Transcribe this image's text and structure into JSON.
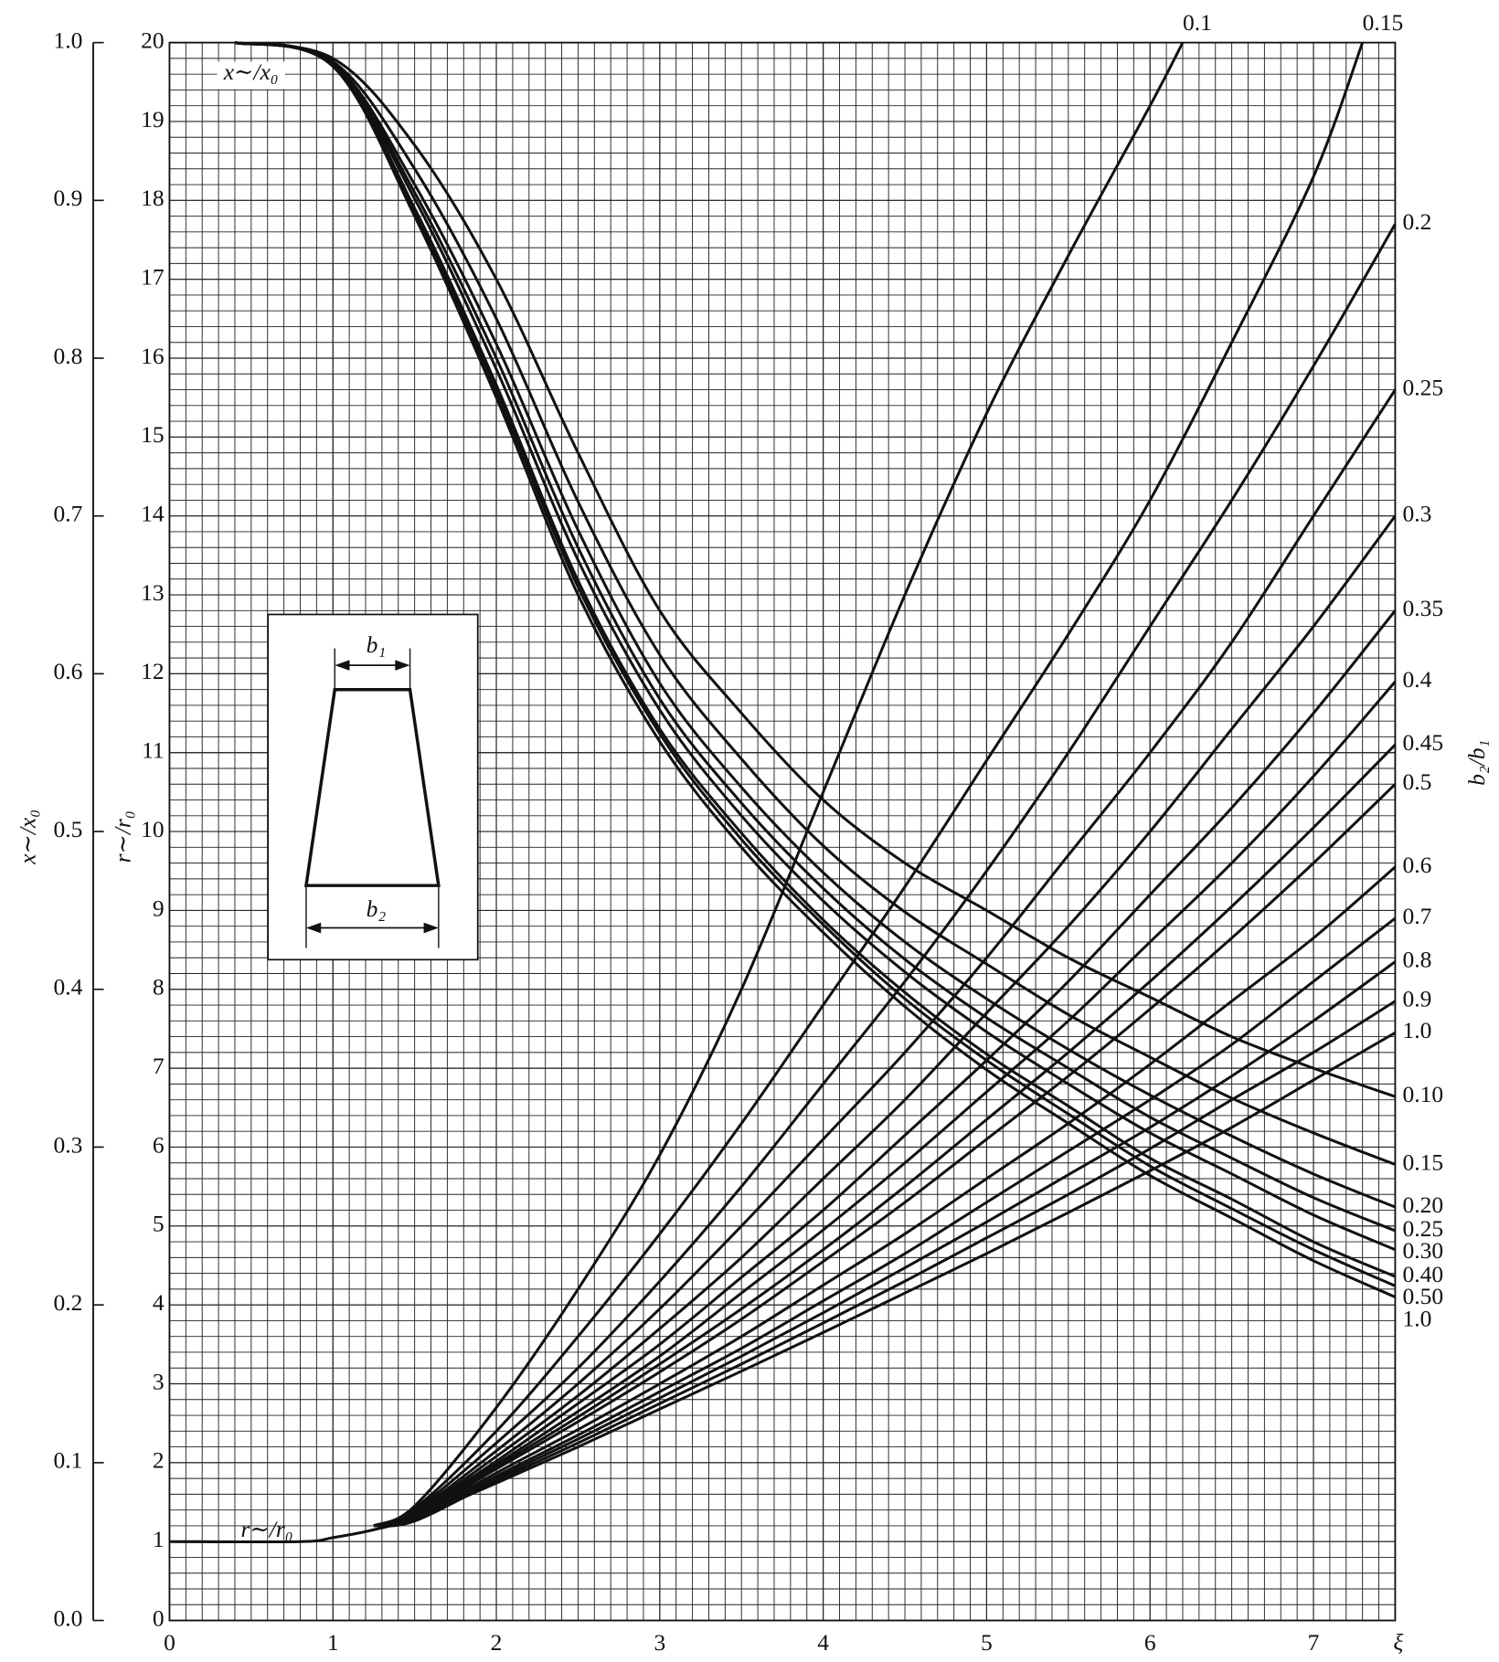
{
  "chart_data": {
    "type": "line",
    "xlabel": "ξ",
    "ylabel": "x∼/x₀",
    "y2label": "r∼/r₀",
    "legend_title": "b₂/b₁",
    "annotations": [
      "x∼/x₀",
      "r∼/r₀"
    ],
    "color": "#111111",
    "grid": true,
    "xlim": [
      0,
      7.5
    ],
    "xticks": [
      0,
      1,
      2,
      3,
      4,
      5,
      6,
      7
    ],
    "ylim": [
      0,
      1
    ],
    "yticks": [
      {
        "value": 0,
        "label": "0.0"
      },
      0.1,
      0.2,
      0.3,
      0.4,
      0.5,
      0.6,
      0.7,
      0.8,
      0.9,
      {
        "value": 1,
        "label": "1.0"
      }
    ],
    "y2lim": [
      0,
      20
    ],
    "y2ticks": [
      0,
      1,
      2,
      3,
      4,
      5,
      6,
      7,
      8,
      9,
      10,
      11,
      12,
      13,
      14,
      15,
      16,
      17,
      18,
      19,
      20
    ],
    "series": [
      {
        "name": "0.10",
        "x": [
          0.4,
          1,
          1.5,
          2,
          2.5,
          3,
          3.5,
          4,
          4.5,
          5,
          5.5,
          6,
          6.5,
          7,
          7.5
        ],
        "values": [
          1,
          0.99,
          0.935,
          0.85,
          0.74,
          0.64,
          0.575,
          0.52,
          0.48,
          0.45,
          0.42,
          0.395,
          0.37,
          0.35,
          0.332
        ]
      },
      {
        "name": "0.15",
        "x": [
          0.4,
          1,
          1.5,
          2,
          2.5,
          3,
          3.5,
          4,
          4.5,
          5,
          5.5,
          6,
          6.5,
          7,
          7.5
        ],
        "values": [
          1,
          0.988,
          0.92,
          0.825,
          0.709,
          0.612,
          0.546,
          0.491,
          0.449,
          0.416,
          0.384,
          0.357,
          0.331,
          0.309,
          0.289
        ]
      },
      {
        "name": "0.20",
        "x": [
          0.4,
          1,
          1.5,
          2,
          2.5,
          3,
          3.5,
          4,
          4.5,
          5,
          5.5,
          6,
          6.5,
          7,
          7.5
        ],
        "values": [
          1,
          0.987,
          0.91,
          0.809,
          0.691,
          0.594,
          0.528,
          0.474,
          0.43,
          0.394,
          0.362,
          0.333,
          0.307,
          0.283,
          0.262
        ]
      },
      {
        "name": "0.25",
        "x": [
          0.4,
          1,
          1.5,
          2,
          2.5,
          3,
          3.5,
          4,
          4.5,
          5,
          5.5,
          6,
          6.5,
          7,
          7.5
        ],
        "values": [
          1,
          0.987,
          0.905,
          0.8,
          0.68,
          0.584,
          0.518,
          0.464,
          0.419,
          0.382,
          0.35,
          0.319,
          0.293,
          0.268,
          0.247
        ]
      },
      {
        "name": "0.30",
        "x": [
          0.4,
          1,
          1.5,
          2,
          2.5,
          3,
          3.5,
          4,
          4.5,
          5,
          5.5,
          6,
          6.5,
          7,
          7.5
        ],
        "values": [
          1,
          0.986,
          0.901,
          0.793,
          0.672,
          0.577,
          0.51,
          0.456,
          0.411,
          0.373,
          0.34,
          0.309,
          0.283,
          0.257,
          0.235
        ]
      },
      {
        "name": "0.40",
        "x": [
          0.4,
          1,
          1.5,
          2,
          2.5,
          3,
          3.5,
          4,
          4.5,
          5,
          5.5,
          6,
          6.5,
          7,
          7.5
        ],
        "values": [
          1,
          0.986,
          0.895,
          0.783,
          0.659,
          0.565,
          0.499,
          0.444,
          0.398,
          0.359,
          0.326,
          0.293,
          0.267,
          0.24,
          0.218
        ]
      },
      {
        "name": "0.50",
        "x": [
          0.4,
          1,
          1.5,
          2,
          2.5,
          3,
          3.5,
          4,
          4.5,
          5,
          5.5,
          6,
          6.5,
          7,
          7.5
        ],
        "values": [
          1,
          0.985,
          0.892,
          0.779,
          0.655,
          0.562,
          0.495,
          0.441,
          0.394,
          0.355,
          0.321,
          0.288,
          0.261,
          0.235,
          0.212
        ]
      },
      {
        "name": "1.0",
        "x": [
          0.4,
          1,
          1.5,
          2,
          2.5,
          3,
          3.5,
          4,
          4.5,
          5,
          5.5,
          6,
          6.5,
          7,
          7.5
        ],
        "values": [
          1,
          0.985,
          0.89,
          0.775,
          0.65,
          0.557,
          0.49,
          0.436,
          0.389,
          0.349,
          0.315,
          0.282,
          0.255,
          0.228,
          0.205
        ]
      },
      {
        "name": "0.1",
        "axis": "y2",
        "x": [
          1.25,
          1.5,
          2,
          2.5,
          3,
          3.5,
          4,
          4.5,
          5,
          5.5,
          6,
          6.2
        ],
        "values": [
          1.2,
          1.45,
          2.7,
          4.2,
          5.9,
          8.0,
          10.5,
          13.0,
          15.3,
          17.3,
          19.2,
          20
        ]
      },
      {
        "name": "0.15",
        "axis": "y2",
        "x": [
          1.25,
          1.5,
          2,
          2.5,
          3,
          3.5,
          4,
          4.5,
          5,
          5.5,
          6,
          6.5,
          7,
          7.3
        ],
        "values": [
          1.2,
          1.42,
          2.4,
          3.6,
          4.9,
          6.3,
          7.8,
          9.3,
          10.9,
          12.5,
          14.2,
          16.2,
          18.3,
          20
        ]
      },
      {
        "name": "0.2",
        "axis": "y2",
        "x": [
          1.25,
          1.5,
          2,
          2.5,
          3,
          3.5,
          4,
          4.5,
          5,
          5.5,
          6,
          6.5,
          7,
          7.5
        ],
        "values": [
          1.2,
          1.4,
          2.25,
          3.2,
          4.3,
          5.5,
          6.8,
          8.1,
          9.5,
          11.0,
          12.6,
          14.2,
          15.9,
          17.7
        ]
      },
      {
        "name": "0.25",
        "axis": "y2",
        "x": [
          1.25,
          1.5,
          2,
          2.5,
          3,
          3.5,
          4,
          4.5,
          5,
          5.5,
          6,
          6.5,
          7,
          7.5
        ],
        "values": [
          1.2,
          1.38,
          2.15,
          3.0,
          3.95,
          5.0,
          6.1,
          7.2,
          8.4,
          9.7,
          11.0,
          12.4,
          14.0,
          15.6
        ]
      },
      {
        "name": "0.3",
        "axis": "y2",
        "x": [
          1.25,
          1.5,
          2,
          2.5,
          3,
          3.5,
          4,
          4.5,
          5,
          5.5,
          6,
          6.5,
          7,
          7.5
        ],
        "values": [
          1.2,
          1.36,
          2.08,
          2.85,
          3.7,
          4.6,
          5.6,
          6.6,
          7.7,
          8.8,
          10.0,
          11.3,
          12.6,
          14.0
        ]
      },
      {
        "name": "0.35",
        "axis": "y2",
        "x": [
          1.25,
          1.5,
          2,
          2.5,
          3,
          3.5,
          4,
          4.5,
          5,
          5.5,
          6,
          6.5,
          7,
          7.5
        ],
        "values": [
          1.2,
          1.35,
          2.02,
          2.75,
          3.5,
          4.35,
          5.2,
          6.15,
          7.1,
          8.1,
          9.2,
          10.3,
          11.5,
          12.8
        ]
      },
      {
        "name": "0.4",
        "axis": "y2",
        "x": [
          1.25,
          1.5,
          2,
          2.5,
          3,
          3.5,
          4,
          4.5,
          5,
          5.5,
          6,
          6.5,
          7,
          7.5
        ],
        "values": [
          1.2,
          1.34,
          1.98,
          2.65,
          3.35,
          4.15,
          4.95,
          5.8,
          6.7,
          7.6,
          8.6,
          9.6,
          10.7,
          11.9
        ]
      },
      {
        "name": "0.45",
        "axis": "y2",
        "x": [
          1.25,
          1.5,
          2,
          2.5,
          3,
          3.5,
          4,
          4.5,
          5,
          5.5,
          6,
          6.5,
          7,
          7.5
        ],
        "values": [
          1.2,
          1.33,
          1.95,
          2.58,
          3.25,
          3.95,
          4.7,
          5.5,
          6.35,
          7.2,
          8.1,
          9.05,
          10.05,
          11.1
        ]
      },
      {
        "name": "0.5",
        "axis": "y2",
        "x": [
          1.25,
          1.5,
          2,
          2.5,
          3,
          3.5,
          4,
          4.5,
          5,
          5.5,
          6,
          6.5,
          7,
          7.5
        ],
        "values": [
          1.2,
          1.32,
          1.92,
          2.52,
          3.15,
          3.82,
          4.55,
          5.3,
          6.1,
          6.9,
          7.75,
          8.65,
          9.6,
          10.6
        ]
      },
      {
        "name": "0.6",
        "axis": "y2",
        "x": [
          1.25,
          1.5,
          2,
          2.5,
          3,
          3.5,
          4,
          4.5,
          5,
          5.5,
          6,
          6.5,
          7,
          7.5
        ],
        "values": [
          1.2,
          1.3,
          1.87,
          2.42,
          3.0,
          3.6,
          4.25,
          4.9,
          5.6,
          6.3,
          7.05,
          7.85,
          8.65,
          9.55
        ]
      },
      {
        "name": "0.7",
        "axis": "y2",
        "x": [
          1.25,
          1.5,
          2,
          2.5,
          3,
          3.5,
          4,
          4.5,
          5,
          5.5,
          6,
          6.5,
          7,
          7.5
        ],
        "values": [
          1.2,
          1.28,
          1.83,
          2.35,
          2.9,
          3.45,
          4.05,
          4.65,
          5.3,
          5.95,
          6.6,
          7.3,
          8.1,
          8.9
        ]
      },
      {
        "name": "0.8",
        "axis": "y2",
        "x": [
          1.25,
          1.5,
          2,
          2.5,
          3,
          3.5,
          4,
          4.5,
          5,
          5.5,
          6,
          6.5,
          7,
          7.5
        ],
        "values": [
          1.2,
          1.27,
          1.8,
          2.3,
          2.82,
          3.35,
          3.9,
          4.47,
          5.05,
          5.65,
          6.25,
          6.9,
          7.6,
          8.35
        ]
      },
      {
        "name": "0.9",
        "axis": "y2",
        "x": [
          1.25,
          1.5,
          2,
          2.5,
          3,
          3.5,
          4,
          4.5,
          5,
          5.5,
          6,
          6.5,
          7,
          7.5
        ],
        "values": [
          1.2,
          1.26,
          1.77,
          2.25,
          2.75,
          3.25,
          3.77,
          4.3,
          4.85,
          5.4,
          5.98,
          6.6,
          7.2,
          7.85
        ]
      },
      {
        "name": "1.0",
        "axis": "y2",
        "x": [
          0,
          0.8,
          1,
          1.25,
          1.5,
          2,
          2.5,
          3,
          3.5,
          4,
          4.5,
          5,
          5.5,
          6,
          6.5,
          7,
          7.5
        ],
        "values": [
          1,
          1,
          1.05,
          1.15,
          1.3,
          1.74,
          2.2,
          2.68,
          3.16,
          3.65,
          4.15,
          4.65,
          5.17,
          5.7,
          6.25,
          6.85,
          7.45
        ]
      }
    ]
  },
  "inset": {
    "top_label": "b₁",
    "bottom_label": "b₂"
  }
}
